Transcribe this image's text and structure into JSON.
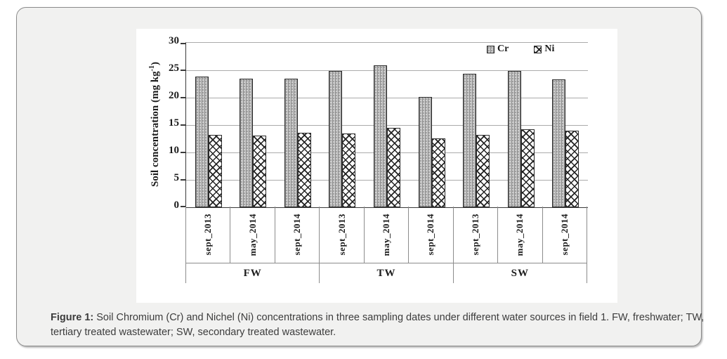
{
  "panel": {
    "caption_prefix": "Figure 1:",
    "caption_rest": " Soil Chromium (Cr) and Nichel (Ni) concentrations in three sampling dates under different water sources in field 1. FW, freshwater; TW, tertiary treated wastewater; SW, secondary treated wastewater."
  },
  "chart_data": {
    "type": "bar",
    "title": "",
    "ylabel": {
      "pre": "Soil concentration  (mg kg",
      "sup": "-1",
      "post": ")"
    },
    "ylim": [
      0,
      30
    ],
    "yticks": [
      0,
      5,
      10,
      15,
      20,
      25,
      30
    ],
    "grid": true,
    "legend_position": "top-right-inside",
    "groups": [
      "FW",
      "TW",
      "SW"
    ],
    "categories": [
      "sept_2013",
      "may_2014",
      "sept_2014",
      "sept_2013",
      "may_2014",
      "sept_2014",
      "sept_2013",
      "may_2014",
      "sept_2014"
    ],
    "series": [
      {
        "name": "Cr",
        "pattern": "dotted-gray",
        "values": [
          23.8,
          23.5,
          23.5,
          24.9,
          25.9,
          20.1,
          24.4,
          24.9,
          23.3
        ]
      },
      {
        "name": "Ni",
        "pattern": "diagonal-hatch",
        "values": [
          13.2,
          13.1,
          13.6,
          13.5,
          14.5,
          12.6,
          13.2,
          14.2,
          14.0
        ]
      }
    ]
  },
  "colors": {
    "panel_background": "#f1f1f0",
    "panel_border": "#8a8a8a",
    "chart_background": "#ffffff",
    "gridline": "#ababab",
    "axis": "#3a3a3a",
    "bar_cr_fill": "#cdcdcd",
    "bar_outline": "#2b2b2b",
    "caption_text": "#3c3c3c"
  }
}
